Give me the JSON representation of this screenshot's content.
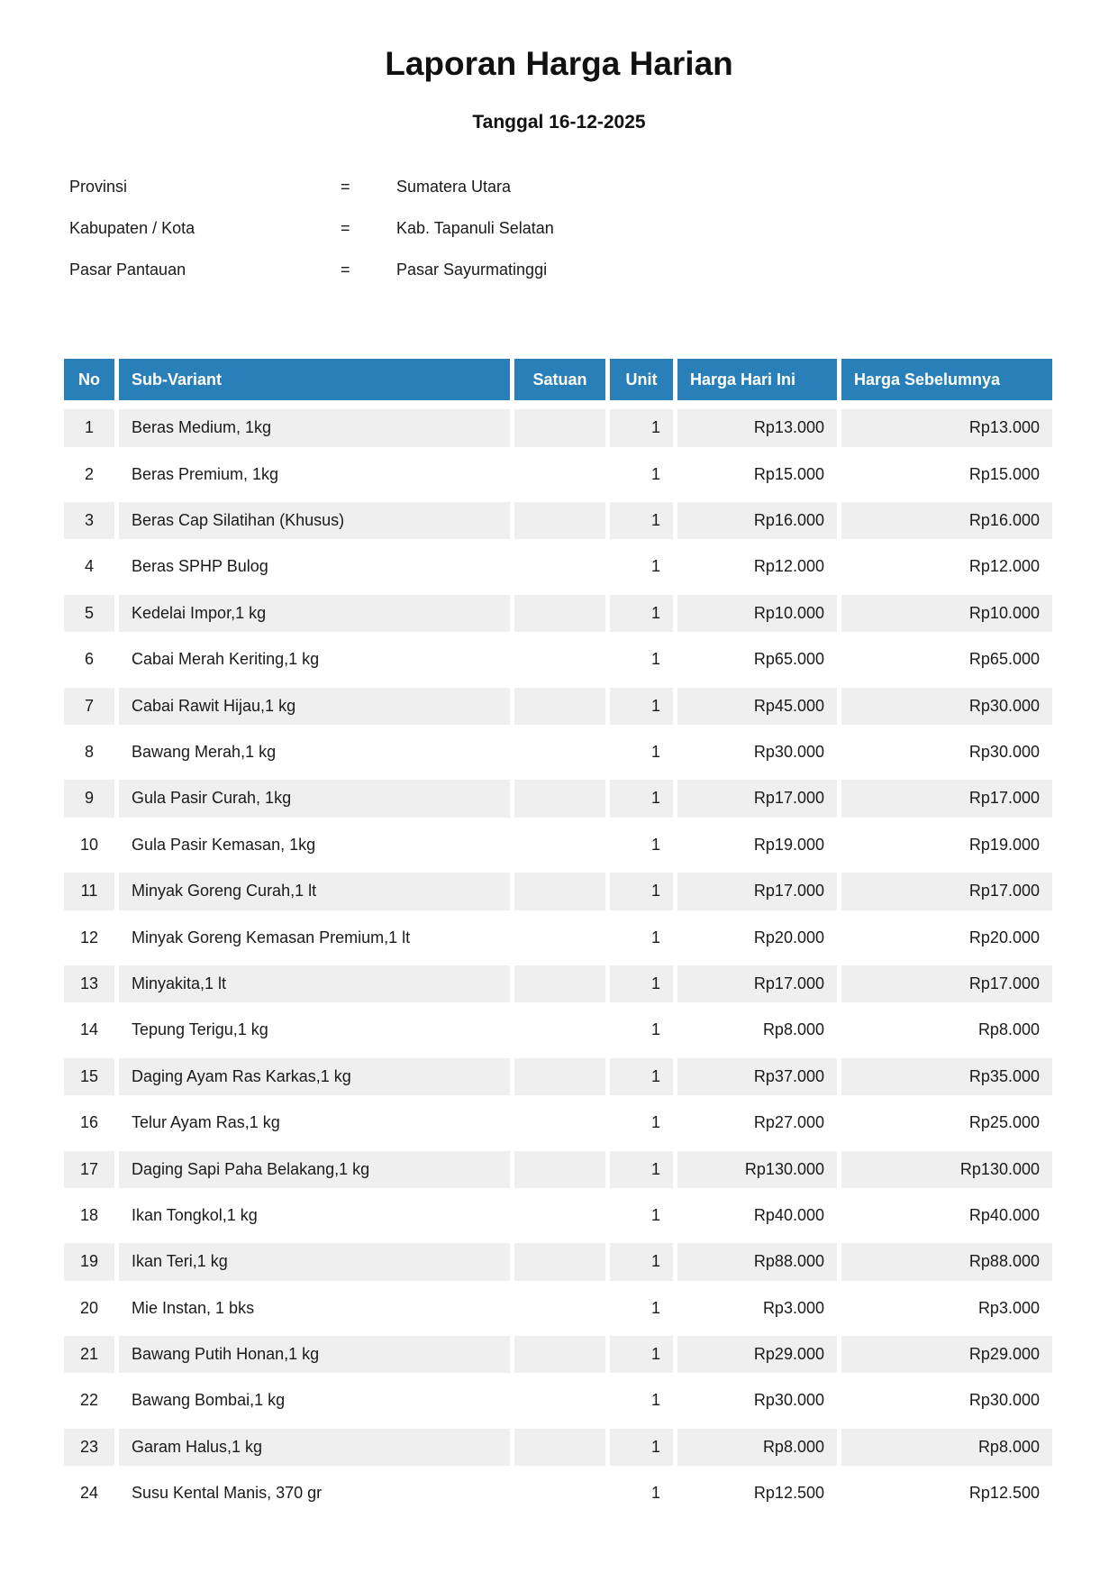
{
  "report": {
    "title": "Laporan Harga Harian",
    "subtitle": "Tanggal 16-12-2025"
  },
  "meta": {
    "separator": "=",
    "rows": [
      {
        "label": "Provinsi",
        "value": "Sumatera Utara"
      },
      {
        "label": "Kabupaten / Kota",
        "value": "Kab. Tapanuli Selatan"
      },
      {
        "label": "Pasar Pantauan",
        "value": "Pasar Sayurmatinggi"
      }
    ]
  },
  "table": {
    "headers": [
      "No",
      "Sub-Variant",
      "Satuan",
      "Unit",
      "Harga Hari Ini",
      "Harga Sebelumnya"
    ],
    "rows": [
      {
        "no": "1",
        "sub_variant": "Beras Medium, 1kg",
        "satuan": "",
        "unit": "1",
        "harga_hari_ini": "Rp13.000",
        "harga_sebelumnya": "Rp13.000"
      },
      {
        "no": "2",
        "sub_variant": "Beras Premium, 1kg",
        "satuan": "",
        "unit": "1",
        "harga_hari_ini": "Rp15.000",
        "harga_sebelumnya": "Rp15.000"
      },
      {
        "no": "3",
        "sub_variant": "Beras Cap Silatihan (Khusus)",
        "satuan": "",
        "unit": "1",
        "harga_hari_ini": "Rp16.000",
        "harga_sebelumnya": "Rp16.000"
      },
      {
        "no": "4",
        "sub_variant": "Beras SPHP Bulog",
        "satuan": "",
        "unit": "1",
        "harga_hari_ini": "Rp12.000",
        "harga_sebelumnya": "Rp12.000"
      },
      {
        "no": "5",
        "sub_variant": "Kedelai Impor,1 kg",
        "satuan": "",
        "unit": "1",
        "harga_hari_ini": "Rp10.000",
        "harga_sebelumnya": "Rp10.000"
      },
      {
        "no": "6",
        "sub_variant": "Cabai Merah Keriting,1 kg",
        "satuan": "",
        "unit": "1",
        "harga_hari_ini": "Rp65.000",
        "harga_sebelumnya": "Rp65.000"
      },
      {
        "no": "7",
        "sub_variant": "Cabai Rawit Hijau,1 kg",
        "satuan": "",
        "unit": "1",
        "harga_hari_ini": "Rp45.000",
        "harga_sebelumnya": "Rp30.000"
      },
      {
        "no": "8",
        "sub_variant": "Bawang Merah,1 kg",
        "satuan": "",
        "unit": "1",
        "harga_hari_ini": "Rp30.000",
        "harga_sebelumnya": "Rp30.000"
      },
      {
        "no": "9",
        "sub_variant": "Gula Pasir Curah, 1kg",
        "satuan": "",
        "unit": "1",
        "harga_hari_ini": "Rp17.000",
        "harga_sebelumnya": "Rp17.000"
      },
      {
        "no": "10",
        "sub_variant": "Gula Pasir Kemasan, 1kg",
        "satuan": "",
        "unit": "1",
        "harga_hari_ini": "Rp19.000",
        "harga_sebelumnya": "Rp19.000"
      },
      {
        "no": "11",
        "sub_variant": "Minyak Goreng Curah,1 lt",
        "satuan": "",
        "unit": "1",
        "harga_hari_ini": "Rp17.000",
        "harga_sebelumnya": "Rp17.000"
      },
      {
        "no": "12",
        "sub_variant": "Minyak Goreng Kemasan Premium,1 lt",
        "satuan": "",
        "unit": "1",
        "harga_hari_ini": "Rp20.000",
        "harga_sebelumnya": "Rp20.000"
      },
      {
        "no": "13",
        "sub_variant": "Minyakita,1 lt",
        "satuan": "",
        "unit": "1",
        "harga_hari_ini": "Rp17.000",
        "harga_sebelumnya": "Rp17.000"
      },
      {
        "no": "14",
        "sub_variant": "Tepung Terigu,1 kg",
        "satuan": "",
        "unit": "1",
        "harga_hari_ini": "Rp8.000",
        "harga_sebelumnya": "Rp8.000"
      },
      {
        "no": "15",
        "sub_variant": "Daging Ayam Ras Karkas,1 kg",
        "satuan": "",
        "unit": "1",
        "harga_hari_ini": "Rp37.000",
        "harga_sebelumnya": "Rp35.000"
      },
      {
        "no": "16",
        "sub_variant": "Telur Ayam Ras,1 kg",
        "satuan": "",
        "unit": "1",
        "harga_hari_ini": "Rp27.000",
        "harga_sebelumnya": "Rp25.000"
      },
      {
        "no": "17",
        "sub_variant": "Daging Sapi Paha Belakang,1 kg",
        "satuan": "",
        "unit": "1",
        "harga_hari_ini": "Rp130.000",
        "harga_sebelumnya": "Rp130.000"
      },
      {
        "no": "18",
        "sub_variant": "Ikan Tongkol,1 kg",
        "satuan": "",
        "unit": "1",
        "harga_hari_ini": "Rp40.000",
        "harga_sebelumnya": "Rp40.000"
      },
      {
        "no": "19",
        "sub_variant": "Ikan Teri,1 kg",
        "satuan": "",
        "unit": "1",
        "harga_hari_ini": "Rp88.000",
        "harga_sebelumnya": "Rp88.000"
      },
      {
        "no": "20",
        "sub_variant": "Mie Instan, 1 bks",
        "satuan": "",
        "unit": "1",
        "harga_hari_ini": "Rp3.000",
        "harga_sebelumnya": "Rp3.000"
      },
      {
        "no": "21",
        "sub_variant": "Bawang Putih Honan,1 kg",
        "satuan": "",
        "unit": "1",
        "harga_hari_ini": "Rp29.000",
        "harga_sebelumnya": "Rp29.000"
      },
      {
        "no": "22",
        "sub_variant": "Bawang Bombai,1 kg",
        "satuan": "",
        "unit": "1",
        "harga_hari_ini": "Rp30.000",
        "harga_sebelumnya": "Rp30.000"
      },
      {
        "no": "23",
        "sub_variant": "Garam Halus,1 kg",
        "satuan": "",
        "unit": "1",
        "harga_hari_ini": "Rp8.000",
        "harga_sebelumnya": "Rp8.000"
      },
      {
        "no": "24",
        "sub_variant": "Susu Kental Manis, 370 gr",
        "satuan": "",
        "unit": "1",
        "harga_hari_ini": "Rp12.500",
        "harga_sebelumnya": "Rp12.500"
      }
    ]
  },
  "colors": {
    "header_bg": "#2980b9",
    "header_text": "#ffffff",
    "row_stripe": "#efefef",
    "text": "#1a1a1a"
  }
}
